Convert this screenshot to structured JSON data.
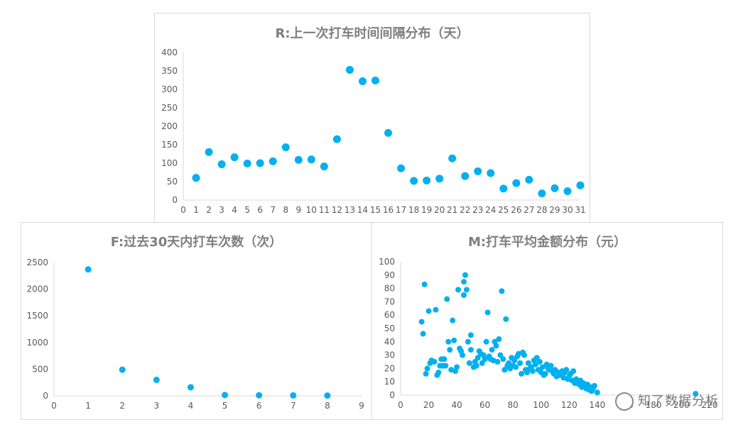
{
  "accent_color": "#00B0F0",
  "watermark": {
    "text": "知了数据分析",
    "icon": "wechat-icon"
  },
  "chart_data": [
    {
      "id": "R",
      "type": "scatter",
      "title": "R:上一次打车时间间隔分布（天）",
      "xlim": [
        0,
        31
      ],
      "ylim": [
        0,
        400
      ],
      "xticks": [
        0,
        1,
        2,
        3,
        4,
        5,
        6,
        7,
        8,
        9,
        10,
        11,
        12,
        13,
        14,
        15,
        16,
        17,
        18,
        19,
        20,
        21,
        22,
        23,
        24,
        25,
        26,
        27,
        28,
        29,
        30,
        31
      ],
      "yticks": [
        0,
        50,
        100,
        150,
        200,
        250,
        300,
        350,
        400
      ],
      "grid": false,
      "points": [
        [
          1,
          60
        ],
        [
          2,
          130
        ],
        [
          3,
          97
        ],
        [
          4,
          116
        ],
        [
          5,
          99
        ],
        [
          6,
          100
        ],
        [
          7,
          105
        ],
        [
          8,
          143
        ],
        [
          9,
          109
        ],
        [
          10,
          110
        ],
        [
          11,
          91
        ],
        [
          12,
          165
        ],
        [
          13,
          353
        ],
        [
          14,
          322
        ],
        [
          15,
          324
        ],
        [
          16,
          182
        ],
        [
          17,
          86
        ],
        [
          18,
          52
        ],
        [
          19,
          53
        ],
        [
          20,
          58
        ],
        [
          21,
          113
        ],
        [
          22,
          65
        ],
        [
          23,
          78
        ],
        [
          24,
          73
        ],
        [
          25,
          31
        ],
        [
          26,
          46
        ],
        [
          27,
          55
        ],
        [
          28,
          18
        ],
        [
          29,
          32
        ],
        [
          30,
          24
        ],
        [
          31,
          40
        ]
      ]
    },
    {
      "id": "F",
      "type": "scatter",
      "title": "F:过去30天内打车次数（次）",
      "xlim": [
        0,
        9
      ],
      "ylim": [
        0,
        2500
      ],
      "xticks": [
        0,
        1,
        2,
        3,
        4,
        5,
        6,
        7,
        8,
        9
      ],
      "yticks": [
        0,
        500,
        1000,
        1500,
        2000,
        2500
      ],
      "grid": false,
      "points": [
        [
          1,
          2370
        ],
        [
          2,
          490
        ],
        [
          3,
          300
        ],
        [
          4,
          160
        ],
        [
          5,
          15
        ],
        [
          6,
          10
        ],
        [
          7,
          8
        ],
        [
          8,
          5
        ]
      ]
    },
    {
      "id": "M",
      "type": "scatter",
      "title": "M:打车平均金额分布（元）",
      "xlim": [
        0,
        220
      ],
      "ylim": [
        0,
        100
      ],
      "xticks": [
        0,
        20,
        40,
        60,
        80,
        100,
        120,
        140,
        160,
        180,
        200,
        220
      ],
      "yticks": [
        0,
        10,
        20,
        30,
        40,
        50,
        60,
        70,
        80,
        90,
        100
      ],
      "grid": false,
      "points": [
        [
          15,
          55
        ],
        [
          16,
          46
        ],
        [
          17,
          83
        ],
        [
          18,
          16
        ],
        [
          19,
          20
        ],
        [
          20,
          63
        ],
        [
          21,
          24
        ],
        [
          22,
          26
        ],
        [
          24,
          25
        ],
        [
          25,
          64
        ],
        [
          26,
          15
        ],
        [
          27,
          17
        ],
        [
          28,
          22
        ],
        [
          29,
          27
        ],
        [
          30,
          22
        ],
        [
          31,
          27
        ],
        [
          32,
          22
        ],
        [
          33,
          72
        ],
        [
          34,
          40
        ],
        [
          35,
          34
        ],
        [
          36,
          19
        ],
        [
          37,
          56
        ],
        [
          38,
          41
        ],
        [
          39,
          18
        ],
        [
          40,
          21
        ],
        [
          41,
          79
        ],
        [
          42,
          35
        ],
        [
          43,
          33
        ],
        [
          44,
          30
        ],
        [
          45,
          75
        ],
        [
          45,
          85
        ],
        [
          46,
          90
        ],
        [
          47,
          79
        ],
        [
          48,
          40
        ],
        [
          49,
          24
        ],
        [
          50,
          34
        ],
        [
          50,
          45
        ],
        [
          52,
          21
        ],
        [
          53,
          25
        ],
        [
          54,
          22
        ],
        [
          55,
          28
        ],
        [
          56,
          33
        ],
        [
          57,
          31
        ],
        [
          58,
          24
        ],
        [
          59,
          30
        ],
        [
          60,
          27
        ],
        [
          61,
          40
        ],
        [
          62,
          62
        ],
        [
          63,
          29
        ],
        [
          64,
          27
        ],
        [
          65,
          34
        ],
        [
          66,
          26
        ],
        [
          67,
          40
        ],
        [
          68,
          37
        ],
        [
          69,
          25
        ],
        [
          70,
          42
        ],
        [
          71,
          30
        ],
        [
          72,
          78
        ],
        [
          73,
          27
        ],
        [
          74,
          19
        ],
        [
          75,
          57
        ],
        [
          76,
          22
        ],
        [
          77,
          24
        ],
        [
          78,
          20
        ],
        [
          79,
          28
        ],
        [
          80,
          22
        ],
        [
          81,
          26
        ],
        [
          82,
          21
        ],
        [
          83,
          29
        ],
        [
          84,
          31
        ],
        [
          85,
          24
        ],
        [
          86,
          16
        ],
        [
          87,
          32
        ],
        [
          88,
          30
        ],
        [
          89,
          19
        ],
        [
          90,
          17
        ],
        [
          91,
          24
        ],
        [
          92,
          20
        ],
        [
          93,
          21
        ],
        [
          94,
          18
        ],
        [
          95,
          26
        ],
        [
          96,
          23
        ],
        [
          97,
          28
        ],
        [
          98,
          19
        ],
        [
          99,
          25
        ],
        [
          100,
          17
        ],
        [
          101,
          21
        ],
        [
          102,
          15
        ],
        [
          103,
          16
        ],
        [
          104,
          23
        ],
        [
          105,
          20
        ],
        [
          106,
          19
        ],
        [
          107,
          22
        ],
        [
          108,
          18
        ],
        [
          109,
          16
        ],
        [
          110,
          19
        ],
        [
          111,
          14
        ],
        [
          112,
          17
        ],
        [
          113,
          15
        ],
        [
          114,
          16
        ],
        [
          115,
          18
        ],
        [
          116,
          13
        ],
        [
          117,
          17
        ],
        [
          118,
          19
        ],
        [
          119,
          12
        ],
        [
          120,
          14
        ],
        [
          121,
          16
        ],
        [
          122,
          11
        ],
        [
          123,
          18
        ],
        [
          124,
          9
        ],
        [
          125,
          12
        ],
        [
          126,
          10
        ],
        [
          127,
          8
        ],
        [
          128,
          11
        ],
        [
          129,
          6
        ],
        [
          130,
          9
        ],
        [
          131,
          7
        ],
        [
          132,
          5
        ],
        [
          133,
          8
        ],
        [
          134,
          4
        ],
        [
          135,
          6
        ],
        [
          136,
          3
        ],
        [
          137,
          5
        ],
        [
          138,
          7
        ],
        [
          140,
          2
        ],
        [
          210,
          1
        ]
      ]
    }
  ]
}
